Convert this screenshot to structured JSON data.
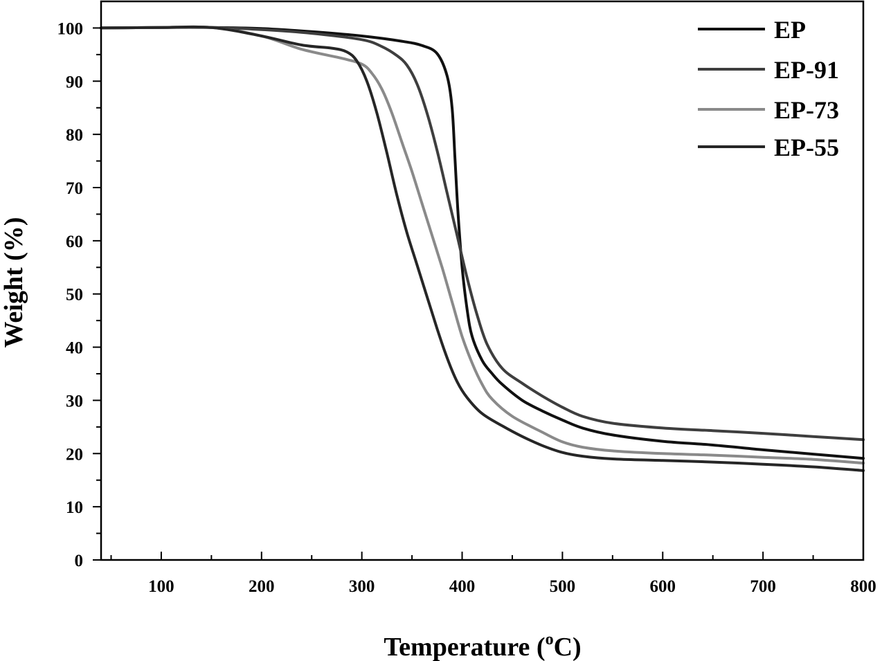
{
  "chart_data": {
    "type": "line",
    "title": "",
    "xlabel": "Temperature (",
    "xlabel_sup": "o",
    "xlabel_unit": "C)",
    "ylabel": "Weight (%)",
    "xlim": [
      40,
      800
    ],
    "ylim": [
      0,
      105
    ],
    "x_ticks": [
      100,
      200,
      300,
      400,
      500,
      600,
      700,
      800
    ],
    "x_minor_ticks": [
      50,
      150,
      250,
      350,
      450,
      550,
      650,
      750
    ],
    "y_ticks": [
      0,
      10,
      20,
      30,
      40,
      50,
      60,
      70,
      80,
      90,
      100
    ],
    "y_minor_ticks": [
      5,
      15,
      25,
      35,
      45,
      55,
      65,
      75,
      85,
      95
    ],
    "grid": false,
    "legend_position": "top-right",
    "series": [
      {
        "name": "EP",
        "color": "#111111",
        "x": [
          40,
          100,
          150,
          200,
          250,
          300,
          340,
          360,
          375,
          385,
          390,
          393,
          396,
          400,
          405,
          410,
          420,
          430,
          440,
          460,
          480,
          500,
          520,
          550,
          600,
          650,
          700,
          750,
          800
        ],
        "y": [
          100,
          100.1,
          100.1,
          99.9,
          99.3,
          98.5,
          97.5,
          96.7,
          95.2,
          91,
          85,
          75,
          65,
          55,
          47,
          42,
          37.5,
          35,
          33,
          30,
          28,
          26.3,
          24.8,
          23.5,
          22.3,
          21.6,
          20.7,
          19.9,
          19.1
        ]
      },
      {
        "name": "EP-91",
        "color": "#3e3e3e",
        "x": [
          40,
          100,
          150,
          200,
          250,
          300,
          320,
          335,
          345,
          355,
          365,
          375,
          385,
          395,
          405,
          415,
          425,
          440,
          460,
          480,
          500,
          520,
          550,
          600,
          650,
          700,
          750,
          800
        ],
        "y": [
          100,
          100.1,
          100.1,
          99.7,
          99,
          97.8,
          96.5,
          94.8,
          93,
          89.5,
          84,
          77,
          69,
          61,
          53,
          46,
          40.5,
          36,
          33.2,
          30.8,
          28.7,
          27,
          25.7,
          24.8,
          24.3,
          23.8,
          23.2,
          22.6
        ]
      },
      {
        "name": "EP-73",
        "color": "#8a8a8a",
        "x": [
          40,
          100,
          150,
          200,
          240,
          280,
          300,
          310,
          320,
          330,
          340,
          350,
          360,
          370,
          380,
          390,
          400,
          410,
          420,
          430,
          450,
          480,
          500,
          520,
          550,
          600,
          650,
          700,
          750,
          800
        ],
        "y": [
          100,
          100.1,
          100.1,
          98.5,
          96,
          94.3,
          93.2,
          91.5,
          88.5,
          84,
          78.5,
          73,
          67,
          61,
          55,
          48.5,
          42,
          37,
          33,
          30.2,
          27,
          24,
          22.2,
          21.2,
          20.5,
          20,
          19.7,
          19.3,
          18.9,
          18.2
        ]
      },
      {
        "name": "EP-55",
        "color": "#262626",
        "x": [
          40,
          100,
          150,
          200,
          240,
          270,
          285,
          295,
          305,
          315,
          325,
          335,
          345,
          355,
          365,
          375,
          385,
          395,
          405,
          420,
          440,
          460,
          480,
          500,
          520,
          550,
          600,
          650,
          700,
          750,
          800
        ],
        "y": [
          100,
          100.1,
          100.1,
          98.5,
          96.8,
          96.2,
          95.5,
          93.8,
          90,
          84,
          76.5,
          68.5,
          61.5,
          55.5,
          49.5,
          43.5,
          38,
          33.5,
          30.5,
          27.5,
          25.2,
          23.2,
          21.5,
          20.2,
          19.5,
          19,
          18.7,
          18.4,
          18,
          17.5,
          16.8
        ]
      }
    ]
  }
}
